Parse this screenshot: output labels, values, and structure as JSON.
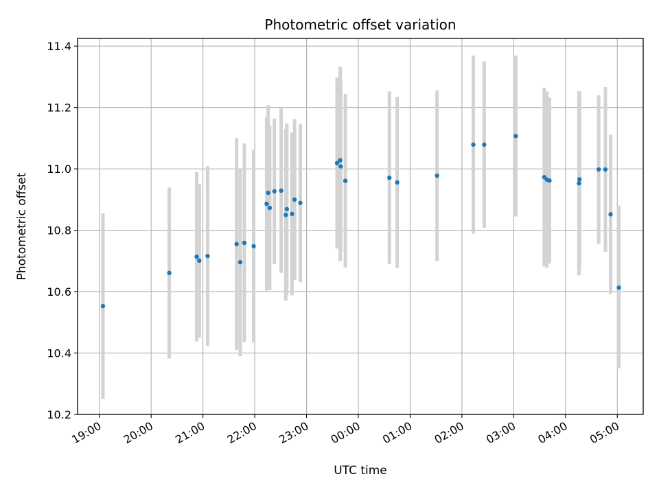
{
  "chart_data": {
    "type": "scatter",
    "title": "Photometric offset variation",
    "xlabel": "UTC time",
    "ylabel": "Photometric offset",
    "grid": true,
    "colors": {
      "point": "#1f77b4",
      "errorbar": "#d3d3d3",
      "grid": "#b0b0b0",
      "axis": "#000000"
    },
    "x_unit": "hours since 19:00 UTC",
    "xlim": [
      -0.42,
      10.5
    ],
    "ylim": [
      10.2,
      11.425
    ],
    "x_ticks": [
      0,
      1,
      2,
      3,
      4,
      5,
      6,
      7,
      8,
      9,
      10
    ],
    "x_tick_labels": [
      "19:00",
      "20:00",
      "21:00",
      "22:00",
      "23:00",
      "00:00",
      "01:00",
      "02:00",
      "03:00",
      "04:00",
      "05:00"
    ],
    "y_ticks": [
      10.2,
      10.4,
      10.6,
      10.8,
      11.0,
      11.2,
      11.4
    ],
    "y_tick_labels": [
      "10.2",
      "10.4",
      "10.6",
      "10.8",
      "11.0",
      "11.2",
      "11.4"
    ],
    "points": [
      {
        "x": 0.07,
        "y": 10.553,
        "lo": 10.25,
        "hi": 10.855
      },
      {
        "x": 1.35,
        "y": 10.661,
        "lo": 10.382,
        "hi": 10.939
      },
      {
        "x": 1.88,
        "y": 10.714,
        "lo": 10.438,
        "hi": 10.99
      },
      {
        "x": 1.93,
        "y": 10.701,
        "lo": 10.45,
        "hi": 10.95
      },
      {
        "x": 2.09,
        "y": 10.716,
        "lo": 10.423,
        "hi": 11.009
      },
      {
        "x": 2.65,
        "y": 10.755,
        "lo": 10.41,
        "hi": 11.1
      },
      {
        "x": 2.72,
        "y": 10.696,
        "lo": 10.39,
        "hi": 11.0
      },
      {
        "x": 2.8,
        "y": 10.759,
        "lo": 10.435,
        "hi": 11.083
      },
      {
        "x": 2.98,
        "y": 10.748,
        "lo": 10.434,
        "hi": 11.062
      },
      {
        "x": 3.23,
        "y": 10.886,
        "lo": 10.603,
        "hi": 11.17
      },
      {
        "x": 3.26,
        "y": 10.922,
        "lo": 10.637,
        "hi": 11.207
      },
      {
        "x": 3.29,
        "y": 10.873,
        "lo": 10.605,
        "hi": 11.141
      },
      {
        "x": 3.38,
        "y": 10.927,
        "lo": 10.69,
        "hi": 11.164
      },
      {
        "x": 3.51,
        "y": 10.929,
        "lo": 10.661,
        "hi": 11.197
      },
      {
        "x": 3.6,
        "y": 10.85,
        "lo": 10.57,
        "hi": 11.13
      },
      {
        "x": 3.62,
        "y": 10.869,
        "lo": 10.59,
        "hi": 11.148
      },
      {
        "x": 3.72,
        "y": 10.853,
        "lo": 10.588,
        "hi": 11.118
      },
      {
        "x": 3.77,
        "y": 10.9,
        "lo": 10.638,
        "hi": 11.162
      },
      {
        "x": 3.88,
        "y": 10.889,
        "lo": 10.631,
        "hi": 11.147
      },
      {
        "x": 4.59,
        "y": 11.019,
        "lo": 10.74,
        "hi": 11.298
      },
      {
        "x": 4.65,
        "y": 11.028,
        "lo": 10.7,
        "hi": 11.332
      },
      {
        "x": 4.66,
        "y": 11.008,
        "lo": 10.73,
        "hi": 11.29
      },
      {
        "x": 4.75,
        "y": 10.961,
        "lo": 10.678,
        "hi": 11.244
      },
      {
        "x": 5.6,
        "y": 10.971,
        "lo": 10.69,
        "hi": 11.252
      },
      {
        "x": 5.75,
        "y": 10.956,
        "lo": 10.677,
        "hi": 11.235
      },
      {
        "x": 6.52,
        "y": 10.978,
        "lo": 10.7,
        "hi": 11.256
      },
      {
        "x": 7.22,
        "y": 11.079,
        "lo": 10.789,
        "hi": 11.369
      },
      {
        "x": 7.43,
        "y": 11.079,
        "lo": 10.808,
        "hi": 11.35
      },
      {
        "x": 8.04,
        "y": 11.107,
        "lo": 10.845,
        "hi": 11.369
      },
      {
        "x": 8.59,
        "y": 10.973,
        "lo": 10.682,
        "hi": 11.264
      },
      {
        "x": 8.64,
        "y": 10.965,
        "lo": 10.678,
        "hi": 11.252
      },
      {
        "x": 8.69,
        "y": 10.962,
        "lo": 10.692,
        "hi": 11.232
      },
      {
        "x": 9.26,
        "y": 10.953,
        "lo": 10.653,
        "hi": 11.253
      },
      {
        "x": 9.27,
        "y": 10.966,
        "lo": 10.68,
        "hi": 11.252
      },
      {
        "x": 9.64,
        "y": 10.998,
        "lo": 10.756,
        "hi": 11.24
      },
      {
        "x": 9.77,
        "y": 10.998,
        "lo": 10.73,
        "hi": 11.266
      },
      {
        "x": 9.87,
        "y": 10.852,
        "lo": 10.593,
        "hi": 11.111
      },
      {
        "x": 10.03,
        "y": 10.613,
        "lo": 10.35,
        "hi": 10.88
      }
    ]
  }
}
